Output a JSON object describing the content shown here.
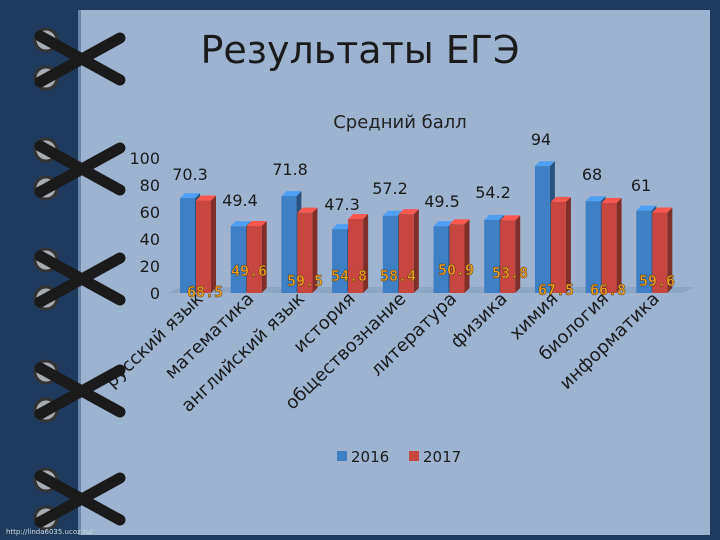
{
  "title": "Результаты ЕГЭ",
  "footer": "http://linda6035.ucoz.ru/",
  "chart_data": {
    "type": "bar",
    "title": "Средний балл",
    "categories": [
      "русский язык",
      "математика",
      "английский язык",
      "история",
      "обществознание",
      "литература",
      "физика",
      "химия",
      "биология",
      "информатика"
    ],
    "series": [
      {
        "name": "2016",
        "values": [
          70.3,
          49.4,
          71.8,
          47.3,
          57.2,
          49.5,
          54.2,
          94,
          68,
          61
        ],
        "color": "#3f7fc4"
      },
      {
        "name": "2017",
        "values": [
          68.5,
          49.6,
          59.5,
          54.8,
          58.4,
          50.9,
          53.8,
          67.5,
          66.8,
          59.6
        ],
        "color": "#c7463f"
      }
    ],
    "ylim": [
      0,
      100
    ],
    "yticks": [
      0,
      20,
      40,
      60,
      80,
      100
    ],
    "grid": false,
    "legend": "bottom"
  },
  "colors": {
    "label_2017": "#f2a01e",
    "background": "#9db3cf",
    "binder": "#1f3a5c"
  }
}
